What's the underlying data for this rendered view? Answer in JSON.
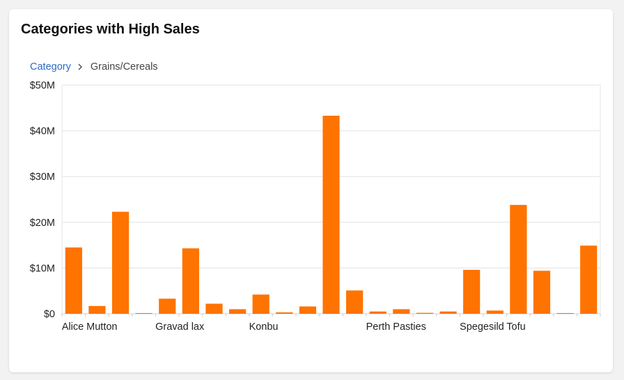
{
  "card": {
    "title": "Categories with High Sales"
  },
  "breadcrumb": {
    "root_label": "Category",
    "current_label": "Grains/Cereals",
    "separator_icon": "chevron-right-icon"
  },
  "colors": {
    "bar": "#ff7300",
    "grid": "#e2e2e2",
    "link": "#2e6bc6"
  },
  "chart_data": {
    "type": "bar",
    "title": "Categories with High Sales",
    "xlabel": "",
    "ylabel": "",
    "ylim": [
      0,
      50000000
    ],
    "y_ticks": [
      0,
      10000000,
      20000000,
      30000000,
      40000000,
      50000000
    ],
    "y_tick_labels": [
      "$0",
      "$10M",
      "$20M",
      "$30M",
      "$40M",
      "$50M"
    ],
    "grid": true,
    "x_tick_labels": [
      {
        "index": 0,
        "label": "Alice Mutton"
      },
      {
        "index": 4,
        "label": "Gravad lax"
      },
      {
        "index": 8,
        "label": "Konbu"
      },
      {
        "index": 13,
        "label": "Perth Pasties"
      },
      {
        "index": 17,
        "label": "Spegesild"
      },
      {
        "index": 19,
        "label": "Tofu"
      }
    ],
    "values": [
      14500000,
      1700000,
      22300000,
      100000,
      3300000,
      14300000,
      2200000,
      1000000,
      4200000,
      300000,
      1600000,
      43300000,
      5100000,
      500000,
      1000000,
      200000,
      500000,
      9600000,
      700000,
      23800000,
      9400000,
      100000,
      14900000
    ]
  }
}
